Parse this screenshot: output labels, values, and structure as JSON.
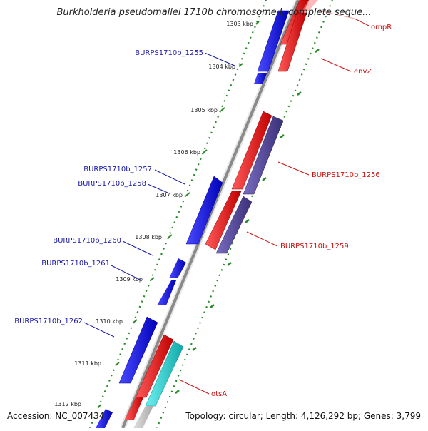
{
  "header": {
    "title": "Burkholderia pseudomallei 1710b chromosome I, complete seque..."
  },
  "footer": {
    "accession": "Accession: NC_007434",
    "topology": "Topology: circular; Length: 4,126,292 bp; Genes: 3,799"
  },
  "map": {
    "kbp_ticks": [
      "1303 kbp",
      "1304 kbp",
      "1305 kbp",
      "1306 kbp",
      "1307 kbp",
      "1308 kbp",
      "1309 kbp",
      "1310 kbp",
      "1311 kbp",
      "1312 kbp"
    ],
    "left_labels": [
      "BURPS1710b_1255",
      "BURPS1710b_1257",
      "BURPS1710b_1258",
      "BURPS1710b_1260",
      "BURPS1710b_1261",
      "BURPS1710b_1262"
    ],
    "right_labels": [
      "ompR",
      "envZ",
      "BURPS1710b_1256",
      "BURPS1710b_1259",
      "otsA"
    ],
    "colors": {
      "forward_gene": "#e8101a",
      "reverse_gene": "#1212e8",
      "other_gene": "#4d3f8f",
      "rna_gene": "#18c8c8",
      "backbone": "#888888",
      "tick_dots": "#2a8a2a",
      "left_label": "#1a1aa8",
      "right_label": "#cc1010"
    }
  }
}
